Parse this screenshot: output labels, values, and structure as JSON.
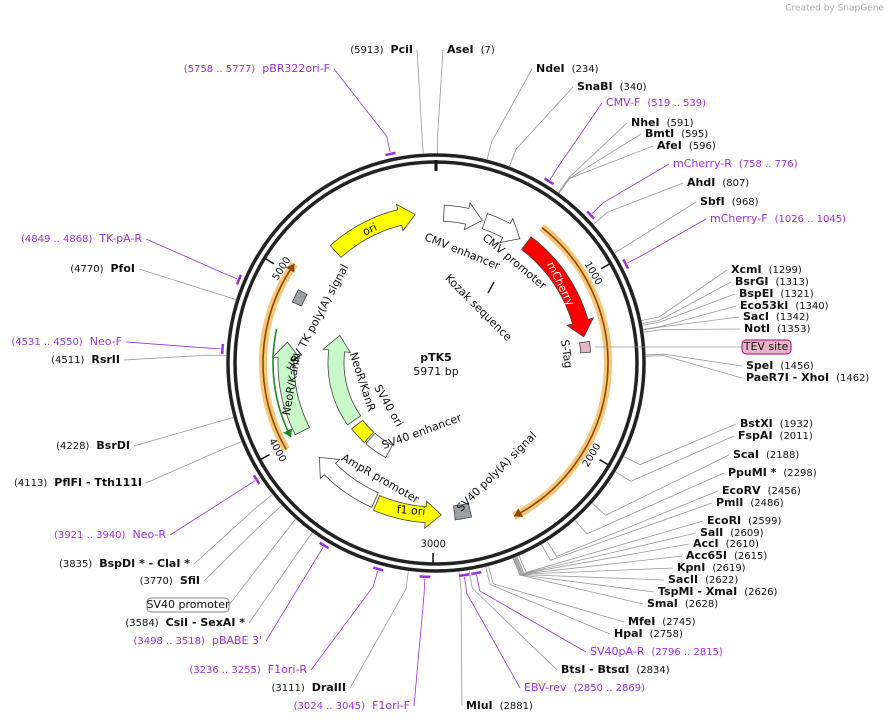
{
  "credit": "Created by SnapGene",
  "plasmid": {
    "name": "pTK5",
    "length": {
      "value": 5971,
      "label": "5971 bp"
    }
  },
  "ticks": [
    1000,
    2000,
    3000,
    4000,
    5000
  ],
  "sites": [
    {
      "name": "PciI",
      "pos": {
        "value": 5913,
        "label": "(5913)"
      }
    },
    {
      "name": "AseI",
      "pos": {
        "value": 7,
        "label": "(7)"
      }
    },
    {
      "name": "NdeI",
      "pos": {
        "value": 234,
        "label": "(234)"
      }
    },
    {
      "name": "SnaBI",
      "pos": {
        "value": 340,
        "label": "(340)"
      }
    },
    {
      "name": "NheI",
      "pos": {
        "value": 591,
        "label": "(591)"
      }
    },
    {
      "name": "BmtI",
      "pos": {
        "value": 595,
        "label": "(595)"
      }
    },
    {
      "name": "AfeI",
      "pos": {
        "value": 596,
        "label": "(596)"
      }
    },
    {
      "name": "AhdI",
      "pos": {
        "value": 807,
        "label": "(807)"
      }
    },
    {
      "name": "SbfI",
      "pos": {
        "value": 968,
        "label": "(968)"
      }
    },
    {
      "name": "XcmI",
      "pos": {
        "value": 1299,
        "label": "(1299)"
      }
    },
    {
      "name": "BsrGI",
      "pos": {
        "value": 1313,
        "label": "(1313)"
      }
    },
    {
      "name": "BspEI",
      "pos": {
        "value": 1321,
        "label": "(1321)"
      }
    },
    {
      "name": "Eco53kI",
      "pos": {
        "value": 1340,
        "label": "(1340)"
      }
    },
    {
      "name": "SacI",
      "pos": {
        "value": 1342,
        "label": "(1342)"
      }
    },
    {
      "name": "NotI",
      "pos": {
        "value": 1353,
        "label": "(1353)"
      }
    },
    {
      "name": "SpeI",
      "pos": {
        "value": 1456,
        "label": "(1456)"
      }
    },
    {
      "name": "PaeR7I - XhoI",
      "pos": {
        "value": 1462,
        "label": "(1462)"
      }
    },
    {
      "name": "BstXI",
      "pos": {
        "value": 1932,
        "label": "(1932)"
      }
    },
    {
      "name": "FspAI",
      "pos": {
        "value": 2011,
        "label": "(2011)"
      }
    },
    {
      "name": "ScaI",
      "pos": {
        "value": 2188,
        "label": "(2188)"
      }
    },
    {
      "name": "PpuMI *",
      "pos": {
        "value": 2298,
        "label": "(2298)"
      }
    },
    {
      "name": "EcoRV",
      "pos": {
        "value": 2456,
        "label": "(2456)"
      }
    },
    {
      "name": "PmlI",
      "pos": {
        "value": 2486,
        "label": "(2486)"
      }
    },
    {
      "name": "EcoRI",
      "pos": {
        "value": 2599,
        "label": "(2599)"
      }
    },
    {
      "name": "SalI",
      "pos": {
        "value": 2609,
        "label": "(2609)"
      }
    },
    {
      "name": "AccI",
      "pos": {
        "value": 2610,
        "label": "(2610)"
      }
    },
    {
      "name": "Acc65I",
      "pos": {
        "value": 2615,
        "label": "(2615)"
      }
    },
    {
      "name": "KpnI",
      "pos": {
        "value": 2619,
        "label": "(2619)"
      }
    },
    {
      "name": "SacII",
      "pos": {
        "value": 2622,
        "label": "(2622)"
      }
    },
    {
      "name": "TspMI - XmaI",
      "pos": {
        "value": 2626,
        "label": "(2626)"
      }
    },
    {
      "name": "SmaI",
      "pos": {
        "value": 2628,
        "label": "(2628)"
      }
    },
    {
      "name": "MfeI",
      "pos": {
        "value": 2745,
        "label": "(2745)"
      }
    },
    {
      "name": "HpaI",
      "pos": {
        "value": 2758,
        "label": "(2758)"
      }
    },
    {
      "name": "BtsI - BtsαI",
      "pos": {
        "value": 2834,
        "label": "(2834)"
      }
    },
    {
      "name": "MluI",
      "pos": {
        "value": 2881,
        "label": "(2881)"
      }
    },
    {
      "name": "DraIII",
      "pos": {
        "value": 3111,
        "label": "(3111)"
      }
    },
    {
      "name": "CsiI - SexAI *",
      "pos": {
        "value": 3584,
        "label": "(3584)"
      }
    },
    {
      "name": "SfiI",
      "pos": {
        "value": 3770,
        "label": "(3770)"
      }
    },
    {
      "name": "BspDI * - ClaI *",
      "pos": {
        "value": 3835,
        "label": "(3835)"
      }
    },
    {
      "name": "PflFI - Tth111I",
      "pos": {
        "value": 4113,
        "label": "(4113)"
      }
    },
    {
      "name": "BsrDI",
      "pos": {
        "value": 4228,
        "label": "(4228)"
      }
    },
    {
      "name": "RsrII",
      "pos": {
        "value": 4511,
        "label": "(4511)"
      }
    },
    {
      "name": "PfoI",
      "pos": {
        "value": 4770,
        "label": "(4770)"
      }
    }
  ],
  "primers": [
    {
      "name": "pBR322ori-F",
      "range": "(5758 .. 5777)",
      "start": 5758,
      "end": 5777
    },
    {
      "name": "CMV-F",
      "range": "(519 .. 539)",
      "start": 519,
      "end": 539
    },
    {
      "name": "mCherry-R",
      "range": "(758 .. 776)",
      "start": 758,
      "end": 776
    },
    {
      "name": "mCherry-F",
      "range": "(1026 .. 1045)",
      "start": 1026,
      "end": 1045
    },
    {
      "name": "TK-pA-R",
      "range": "(4849 .. 4868)",
      "start": 4849,
      "end": 4868
    },
    {
      "name": "Neo-F",
      "range": "(4531 .. 4550)",
      "start": 4531,
      "end": 4550
    },
    {
      "name": "SV40pA-R",
      "range": "(2796 .. 2815)",
      "start": 2796,
      "end": 2815
    },
    {
      "name": "EBV-rev",
      "range": "(2850 .. 2869)",
      "start": 2850,
      "end": 2869
    },
    {
      "name": "F1ori-F",
      "range": "(3024 .. 3045)",
      "start": 3024,
      "end": 3045
    },
    {
      "name": "F1ori-R",
      "range": "(3236 .. 3255)",
      "start": 3236,
      "end": 3255
    },
    {
      "name": "pBABE 3'",
      "range": "(3498 .. 3518)",
      "start": 3498,
      "end": 3518
    },
    {
      "name": "Neo-R",
      "range": "(3921 .. 3940)",
      "start": 3921,
      "end": 3940
    }
  ],
  "features": [
    "ori",
    "CMV enhancer",
    "CMV promoter",
    "mCherry",
    "Kozak sequence",
    "S-Tag",
    "SV40 poly(A) signal",
    "f1 ori",
    "AmpR promoter",
    "NeoR/KanR",
    "HSV TK poly(A) signal",
    "NeoR/KanR",
    "SV40 ori",
    "SV40 enhancer"
  ],
  "boxed_features": [
    "TEV site",
    "SV40 promoter"
  ]
}
